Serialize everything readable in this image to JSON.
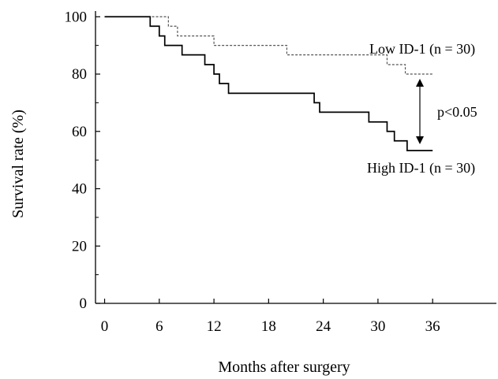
{
  "chart_data": {
    "type": "line",
    "title": "",
    "xlabel": "Months after surgery",
    "ylabel": "Survival rate (%)",
    "xlim": [
      -1,
      43
    ],
    "ylim": [
      0,
      102
    ],
    "xticks": [
      0,
      6,
      12,
      18,
      24,
      30,
      36
    ],
    "yticks": [
      0,
      20,
      40,
      60,
      80,
      100
    ],
    "grid": false,
    "legend": "none",
    "series": [
      {
        "name": "Low ID-1 (n = 30)",
        "style": "dashed",
        "color": "#555555",
        "x": [
          0,
          7,
          7.5,
          8,
          12,
          20,
          31,
          33,
          36
        ],
        "y": [
          100,
          96.7,
          96.7,
          93.3,
          90,
          86.7,
          83.3,
          80,
          80
        ]
      },
      {
        "name": "High ID-1 (n = 30)",
        "style": "solid",
        "color": "#000000",
        "x": [
          0,
          5,
          6,
          6.6,
          8.5,
          11,
          12,
          12.6,
          13.6,
          23,
          23.6,
          29,
          31,
          31.8,
          32.5,
          33.2,
          36
        ],
        "y": [
          100,
          96.7,
          93.3,
          90,
          86.7,
          83.3,
          80,
          76.7,
          73.3,
          70,
          66.7,
          63.3,
          60,
          56.7,
          56.7,
          53.3,
          53.3
        ]
      }
    ],
    "annotations": {
      "p_value": "p<0.05"
    }
  }
}
